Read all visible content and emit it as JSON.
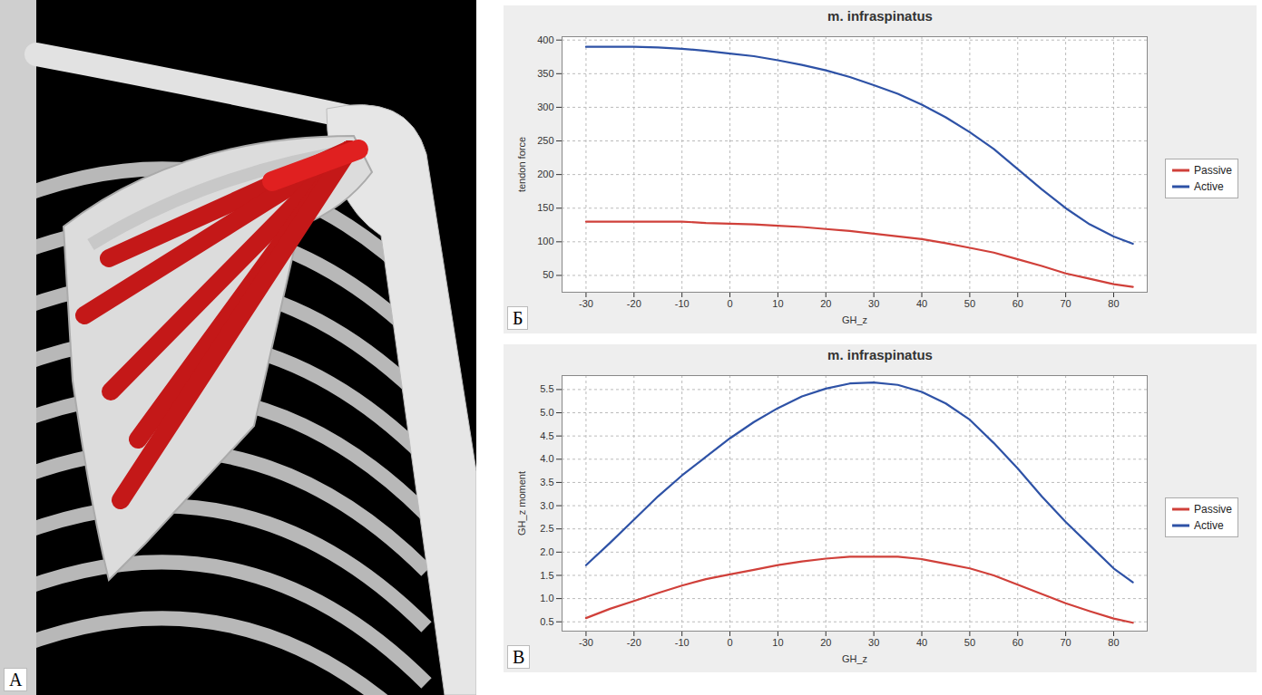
{
  "image_panel": {
    "label": "A"
  },
  "chart_data": [
    {
      "type": "line",
      "panel": "Б",
      "title": "m. infraspinatus",
      "x_label": "GH_z",
      "y_label": "tendon force",
      "x": [
        -30,
        -25,
        -20,
        -15,
        -10,
        -5,
        0,
        5,
        10,
        15,
        20,
        25,
        30,
        35,
        40,
        45,
        50,
        55,
        60,
        65,
        70,
        75,
        80,
        84
      ],
      "series": [
        {
          "name": "Passive",
          "color": "#d0403a",
          "values": [
            130,
            130,
            130,
            130,
            130,
            128,
            127,
            126,
            124,
            122,
            119,
            116,
            112,
            108,
            104,
            98,
            91,
            84,
            74,
            64,
            53,
            45,
            37,
            33
          ]
        },
        {
          "name": "Active",
          "color": "#2e52a6",
          "values": [
            390,
            390,
            390,
            389,
            387,
            384,
            380,
            376,
            370,
            363,
            355,
            345,
            333,
            320,
            304,
            285,
            263,
            238,
            208,
            178,
            150,
            126,
            108,
            97
          ]
        }
      ],
      "xlim": [
        -35,
        87
      ],
      "xticks": [
        -30,
        -20,
        -10,
        0,
        10,
        20,
        30,
        40,
        50,
        60,
        70,
        80
      ],
      "ylim": [
        25,
        405
      ],
      "yticks": [
        50,
        100,
        150,
        200,
        250,
        300,
        350,
        400
      ],
      "grid": true,
      "legend": "right"
    },
    {
      "type": "line",
      "panel": "В",
      "title": "m. infraspinatus",
      "x_label": "GH_z",
      "y_label": "GH_z moment",
      "x": [
        -30,
        -25,
        -20,
        -15,
        -10,
        -5,
        0,
        5,
        10,
        15,
        20,
        25,
        30,
        35,
        40,
        45,
        50,
        55,
        60,
        65,
        70,
        75,
        80,
        84
      ],
      "series": [
        {
          "name": "Passive",
          "color": "#d0403a",
          "values": [
            0.58,
            0.78,
            0.95,
            1.12,
            1.28,
            1.42,
            1.52,
            1.62,
            1.72,
            1.8,
            1.86,
            1.9,
            1.9,
            1.9,
            1.85,
            1.75,
            1.65,
            1.5,
            1.3,
            1.1,
            0.9,
            0.73,
            0.57,
            0.48
          ]
        },
        {
          "name": "Active",
          "color": "#2e52a6",
          "values": [
            1.72,
            2.2,
            2.7,
            3.2,
            3.65,
            4.05,
            4.45,
            4.8,
            5.1,
            5.35,
            5.52,
            5.63,
            5.65,
            5.6,
            5.45,
            5.2,
            4.85,
            4.35,
            3.8,
            3.2,
            2.65,
            2.15,
            1.65,
            1.35
          ]
        }
      ],
      "xlim": [
        -35,
        87
      ],
      "xticks": [
        -30,
        -20,
        -10,
        0,
        10,
        20,
        30,
        40,
        50,
        60,
        70,
        80
      ],
      "ylim": [
        0.3,
        5.8
      ],
      "yticks": [
        0.5,
        {
          "value": 1,
          "label": "1.0"
        },
        1.5,
        {
          "value": 2,
          "label": "2.0"
        },
        2.5,
        {
          "value": 3,
          "label": "3.0"
        },
        3.5,
        {
          "value": 4,
          "label": "4.0"
        },
        4.5,
        {
          "value": 5,
          "label": "5.0"
        },
        5.5
      ],
      "grid": true,
      "legend": "right"
    }
  ]
}
